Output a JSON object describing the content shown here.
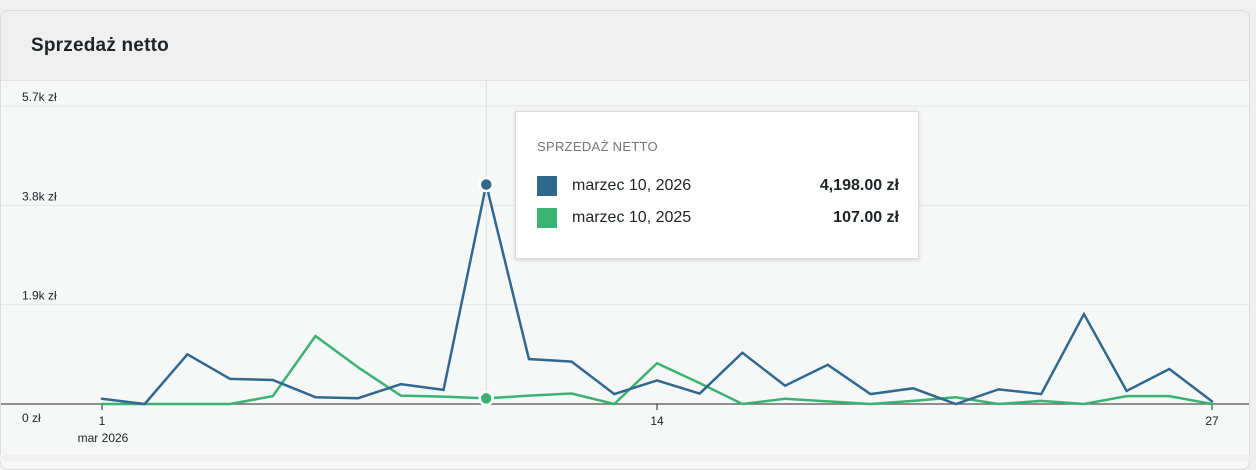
{
  "card": {
    "title": "Sprzedaż netto"
  },
  "chart_data": {
    "type": "line",
    "title": "",
    "y_ticks": [
      "5.7k zł",
      "3.8k zł",
      "1.9k zł",
      "0 zł"
    ],
    "y_tick_values": [
      5700,
      3800,
      1900,
      0
    ],
    "ylim": [
      0,
      5700
    ],
    "x": [
      1,
      2,
      3,
      4,
      5,
      6,
      7,
      8,
      9,
      10,
      11,
      12,
      13,
      14,
      15,
      16,
      17,
      18,
      19,
      20,
      21,
      22,
      23,
      24,
      25,
      26,
      27
    ],
    "x_ticks": [
      "1",
      "14",
      "27"
    ],
    "x_tick_positions": [
      1,
      14,
      27
    ],
    "x_sublabel": "mar 2026",
    "grid": true,
    "series": [
      {
        "name": "marzec 10, 2026",
        "color": "#31688e",
        "values": [
          100,
          0,
          950,
          480,
          460,
          130,
          110,
          380,
          270,
          4198,
          860,
          810,
          190,
          450,
          200,
          980,
          350,
          750,
          190,
          300,
          0,
          280,
          190,
          1720,
          250,
          670,
          50
        ]
      },
      {
        "name": "marzec 10, 2025",
        "color": "#3bb273",
        "values": [
          0,
          0,
          0,
          0,
          150,
          1300,
          700,
          160,
          140,
          107,
          160,
          200,
          0,
          780,
          400,
          0,
          100,
          50,
          0,
          60,
          130,
          0,
          60,
          0,
          150,
          150,
          0
        ]
      }
    ],
    "highlight_index": 9
  },
  "tooltip": {
    "title": "SPRZEDAŻ NETTO",
    "rows": [
      {
        "label": "marzec 10, 2026",
        "value": "4,198.00 zł",
        "color": "#31688e"
      },
      {
        "label": "marzec 10, 2025",
        "value": "107.00 zł",
        "color": "#3bb273"
      }
    ]
  }
}
